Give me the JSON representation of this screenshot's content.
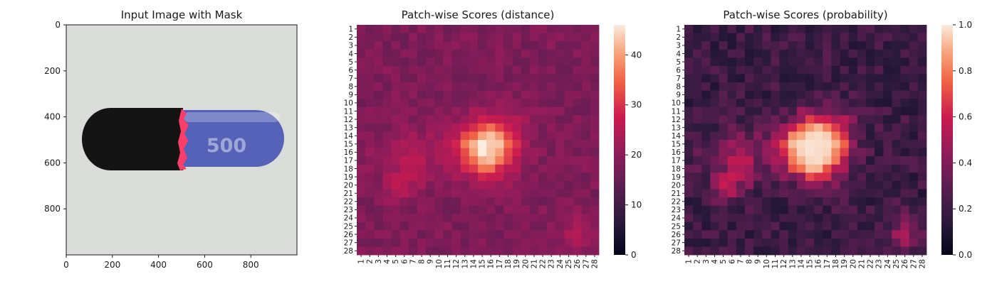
{
  "chart_data": [
    {
      "type": "image",
      "title": "Input Image with Mask",
      "xticks": [
        0,
        200,
        400,
        600,
        800
      ],
      "yticks": [
        0,
        200,
        400,
        600,
        800
      ],
      "xlim": [
        0,
        1000
      ],
      "ylim": [
        1000,
        0
      ],
      "capsule_text": "500",
      "colors": {
        "background": "#dadcd9",
        "cap": "#141414",
        "body": "#5562b8",
        "mask": "#ff3f6a",
        "text": "#9ea7d6"
      }
    },
    {
      "type": "heatmap",
      "title": "Patch-wise Scores (distance)",
      "rows": 28,
      "cols": 28,
      "xticklabels": [
        "1",
        "2",
        "3",
        "4",
        "5",
        "6",
        "7",
        "8",
        "9",
        "10",
        "11",
        "12",
        "13",
        "14",
        "15",
        "16",
        "17",
        "18",
        "19",
        "20",
        "21",
        "22",
        "23",
        "24",
        "25",
        "26",
        "27",
        "28"
      ],
      "yticklabels": [
        "1",
        "2",
        "3",
        "4",
        "5",
        "6",
        "7",
        "8",
        "9",
        "10",
        "11",
        "12",
        "13",
        "14",
        "15",
        "16",
        "17",
        "18",
        "19",
        "20",
        "21",
        "22",
        "23",
        "24",
        "25",
        "26",
        "27",
        "28"
      ],
      "colormap": "rocket",
      "vmin": 0,
      "vmax": 46,
      "colorbar_ticks": [
        0,
        10,
        20,
        30,
        40
      ],
      "background_level": 18,
      "hotspots": [
        {
          "row": 15.5,
          "col": 15.5,
          "sigma": 2.4,
          "amplitude": 28
        },
        {
          "row": 17.0,
          "col": 6.5,
          "sigma": 2.6,
          "amplitude": 6
        },
        {
          "row": 20.5,
          "col": 5.5,
          "sigma": 1.2,
          "amplitude": 4
        },
        {
          "row": 26.0,
          "col": 26.0,
          "sigma": 1.5,
          "amplitude": 6
        },
        {
          "row": 11.5,
          "col": 20.0,
          "sigma": 1.3,
          "amplitude": 3
        }
      ]
    },
    {
      "type": "heatmap",
      "title": "Patch-wise Scores (probability)",
      "rows": 28,
      "cols": 28,
      "xticklabels": [
        "1",
        "2",
        "3",
        "4",
        "5",
        "6",
        "7",
        "8",
        "9",
        "10",
        "11",
        "12",
        "13",
        "14",
        "15",
        "16",
        "17",
        "18",
        "19",
        "20",
        "21",
        "22",
        "23",
        "24",
        "25",
        "26",
        "27",
        "28"
      ],
      "yticklabels": [
        "1",
        "2",
        "3",
        "4",
        "5",
        "6",
        "7",
        "8",
        "9",
        "10",
        "11",
        "12",
        "13",
        "14",
        "15",
        "16",
        "17",
        "18",
        "19",
        "20",
        "21",
        "22",
        "23",
        "24",
        "25",
        "26",
        "27",
        "28"
      ],
      "colormap": "rocket",
      "vmin": 0,
      "vmax": 1,
      "colorbar_ticks": [
        0.0,
        0.2,
        0.4,
        0.6,
        0.8,
        1.0
      ],
      "colorbar_ticklabels": [
        "0.0",
        "0.2",
        "0.4",
        "0.6",
        "0.8",
        "1.0"
      ],
      "derived_from": "distance",
      "probability_threshold": 24,
      "probability_scale": 5
    }
  ]
}
